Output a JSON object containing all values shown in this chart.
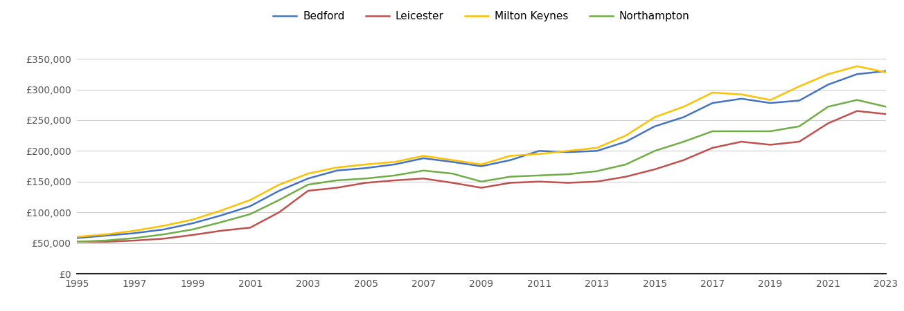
{
  "years": [
    1995,
    1996,
    1997,
    1998,
    1999,
    2000,
    2001,
    2002,
    2003,
    2004,
    2005,
    2006,
    2007,
    2008,
    2009,
    2010,
    2011,
    2012,
    2013,
    2014,
    2015,
    2016,
    2017,
    2018,
    2019,
    2020,
    2021,
    2022,
    2023
  ],
  "bedford": [
    58000,
    62000,
    66000,
    72000,
    82000,
    95000,
    110000,
    135000,
    155000,
    168000,
    172000,
    178000,
    188000,
    182000,
    175000,
    185000,
    200000,
    198000,
    200000,
    215000,
    240000,
    255000,
    278000,
    285000,
    278000,
    282000,
    308000,
    325000,
    330000
  ],
  "leicester": [
    52000,
    52000,
    54000,
    57000,
    63000,
    70000,
    75000,
    100000,
    135000,
    140000,
    148000,
    152000,
    155000,
    148000,
    140000,
    148000,
    150000,
    148000,
    150000,
    158000,
    170000,
    185000,
    205000,
    215000,
    210000,
    215000,
    245000,
    265000,
    260000
  ],
  "milton_keynes": [
    60000,
    64000,
    70000,
    78000,
    88000,
    103000,
    120000,
    145000,
    163000,
    173000,
    178000,
    182000,
    192000,
    185000,
    178000,
    192000,
    195000,
    200000,
    205000,
    225000,
    255000,
    272000,
    295000,
    292000,
    283000,
    305000,
    325000,
    338000,
    328000
  ],
  "northampton": [
    52000,
    54000,
    58000,
    64000,
    72000,
    84000,
    97000,
    120000,
    145000,
    152000,
    155000,
    160000,
    168000,
    163000,
    150000,
    158000,
    160000,
    162000,
    167000,
    178000,
    200000,
    215000,
    232000,
    232000,
    232000,
    240000,
    272000,
    283000,
    272000
  ],
  "colors": {
    "bedford": "#4472C4",
    "leicester": "#C0504D",
    "milton_keynes": "#FFC000",
    "northampton": "#70AD47"
  },
  "ylim": [
    0,
    385000
  ],
  "yticks": [
    0,
    50000,
    100000,
    150000,
    200000,
    250000,
    300000,
    350000
  ],
  "ytick_labels": [
    "£0",
    "£50,000",
    "£100,000",
    "£150,000",
    "£200,000",
    "£250,000",
    "£300,000",
    "£350,000"
  ],
  "background_color": "#ffffff",
  "grid_color": "#cccccc",
  "line_width": 1.8,
  "legend_labels": [
    "Bedford",
    "Leicester",
    "Milton Keynes",
    "Northampton"
  ]
}
